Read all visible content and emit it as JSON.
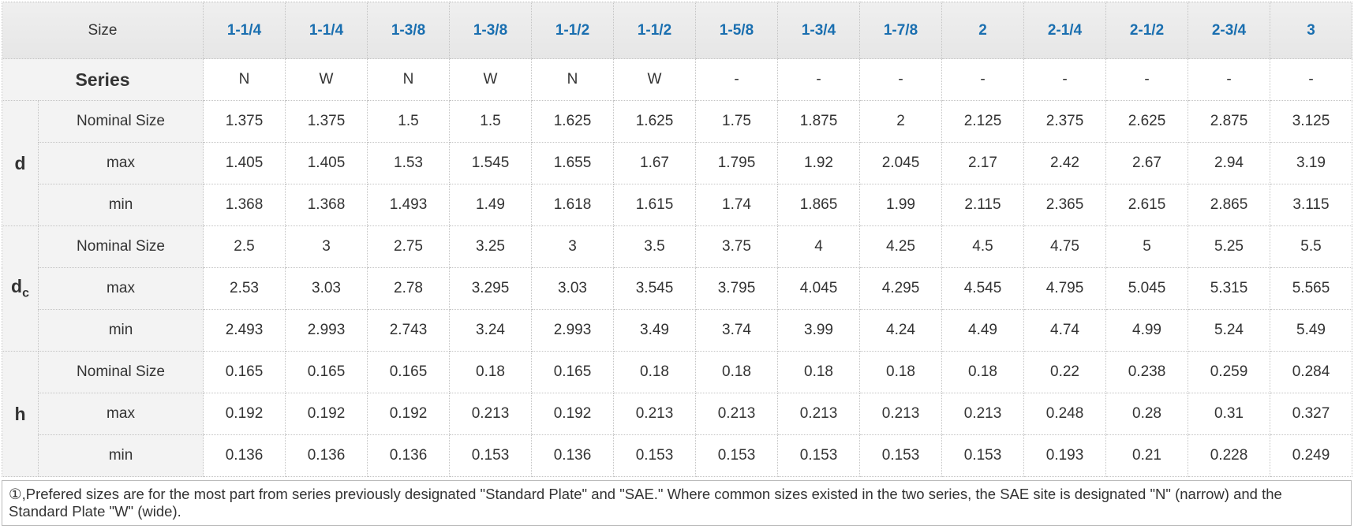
{
  "header": {
    "size_label": "Size",
    "sizes": [
      "1-1/4",
      "1-1/4",
      "1-3/8",
      "1-3/8",
      "1-1/2",
      "1-1/2",
      "1-5/8",
      "1-3/4",
      "1-7/8",
      "2",
      "2-1/4",
      "2-1/2",
      "2-3/4",
      "3"
    ]
  },
  "series": {
    "label": "Series",
    "values": [
      "N",
      "W",
      "N",
      "W",
      "N",
      "W",
      "-",
      "-",
      "-",
      "-",
      "-",
      "-",
      "-",
      "-"
    ]
  },
  "groups": [
    {
      "label": "d",
      "rows": [
        {
          "label": "Nominal Size",
          "values": [
            "1.375",
            "1.375",
            "1.5",
            "1.5",
            "1.625",
            "1.625",
            "1.75",
            "1.875",
            "2",
            "2.125",
            "2.375",
            "2.625",
            "2.875",
            "3.125"
          ]
        },
        {
          "label": "max",
          "values": [
            "1.405",
            "1.405",
            "1.53",
            "1.545",
            "1.655",
            "1.67",
            "1.795",
            "1.92",
            "2.045",
            "2.17",
            "2.42",
            "2.67",
            "2.94",
            "3.19"
          ]
        },
        {
          "label": "min",
          "values": [
            "1.368",
            "1.368",
            "1.493",
            "1.49",
            "1.618",
            "1.615",
            "1.74",
            "1.865",
            "1.99",
            "2.115",
            "2.365",
            "2.615",
            "2.865",
            "3.115"
          ]
        }
      ]
    },
    {
      "label": "d",
      "sub": "c",
      "rows": [
        {
          "label": "Nominal Size",
          "values": [
            "2.5",
            "3",
            "2.75",
            "3.25",
            "3",
            "3.5",
            "3.75",
            "4",
            "4.25",
            "4.5",
            "4.75",
            "5",
            "5.25",
            "5.5"
          ]
        },
        {
          "label": "max",
          "values": [
            "2.53",
            "3.03",
            "2.78",
            "3.295",
            "3.03",
            "3.545",
            "3.795",
            "4.045",
            "4.295",
            "4.545",
            "4.795",
            "5.045",
            "5.315",
            "5.565"
          ]
        },
        {
          "label": "min",
          "values": [
            "2.493",
            "2.993",
            "2.743",
            "3.24",
            "2.993",
            "3.49",
            "3.74",
            "3.99",
            "4.24",
            "4.49",
            "4.74",
            "4.99",
            "5.24",
            "5.49"
          ]
        }
      ]
    },
    {
      "label": "h",
      "rows": [
        {
          "label": "Nominal Size",
          "values": [
            "0.165",
            "0.165",
            "0.165",
            "0.18",
            "0.165",
            "0.18",
            "0.18",
            "0.18",
            "0.18",
            "0.18",
            "0.22",
            "0.238",
            "0.259",
            "0.284"
          ]
        },
        {
          "label": "max",
          "values": [
            "0.192",
            "0.192",
            "0.192",
            "0.213",
            "0.192",
            "0.213",
            "0.213",
            "0.213",
            "0.213",
            "0.213",
            "0.248",
            "0.28",
            "0.31",
            "0.327"
          ]
        },
        {
          "label": "min",
          "values": [
            "0.136",
            "0.136",
            "0.136",
            "0.153",
            "0.136",
            "0.153",
            "0.153",
            "0.153",
            "0.153",
            "0.153",
            "0.193",
            "0.21",
            "0.228",
            "0.249"
          ]
        }
      ]
    }
  ],
  "footnote": "①,Prefered sizes are for the most part from series previously designated \"Standard Plate\" and \"SAE.\" Where common sizes existed in the two series, the SAE site is designated \"N\" (narrow) and the Standard Plate \"W\" (wide)."
}
